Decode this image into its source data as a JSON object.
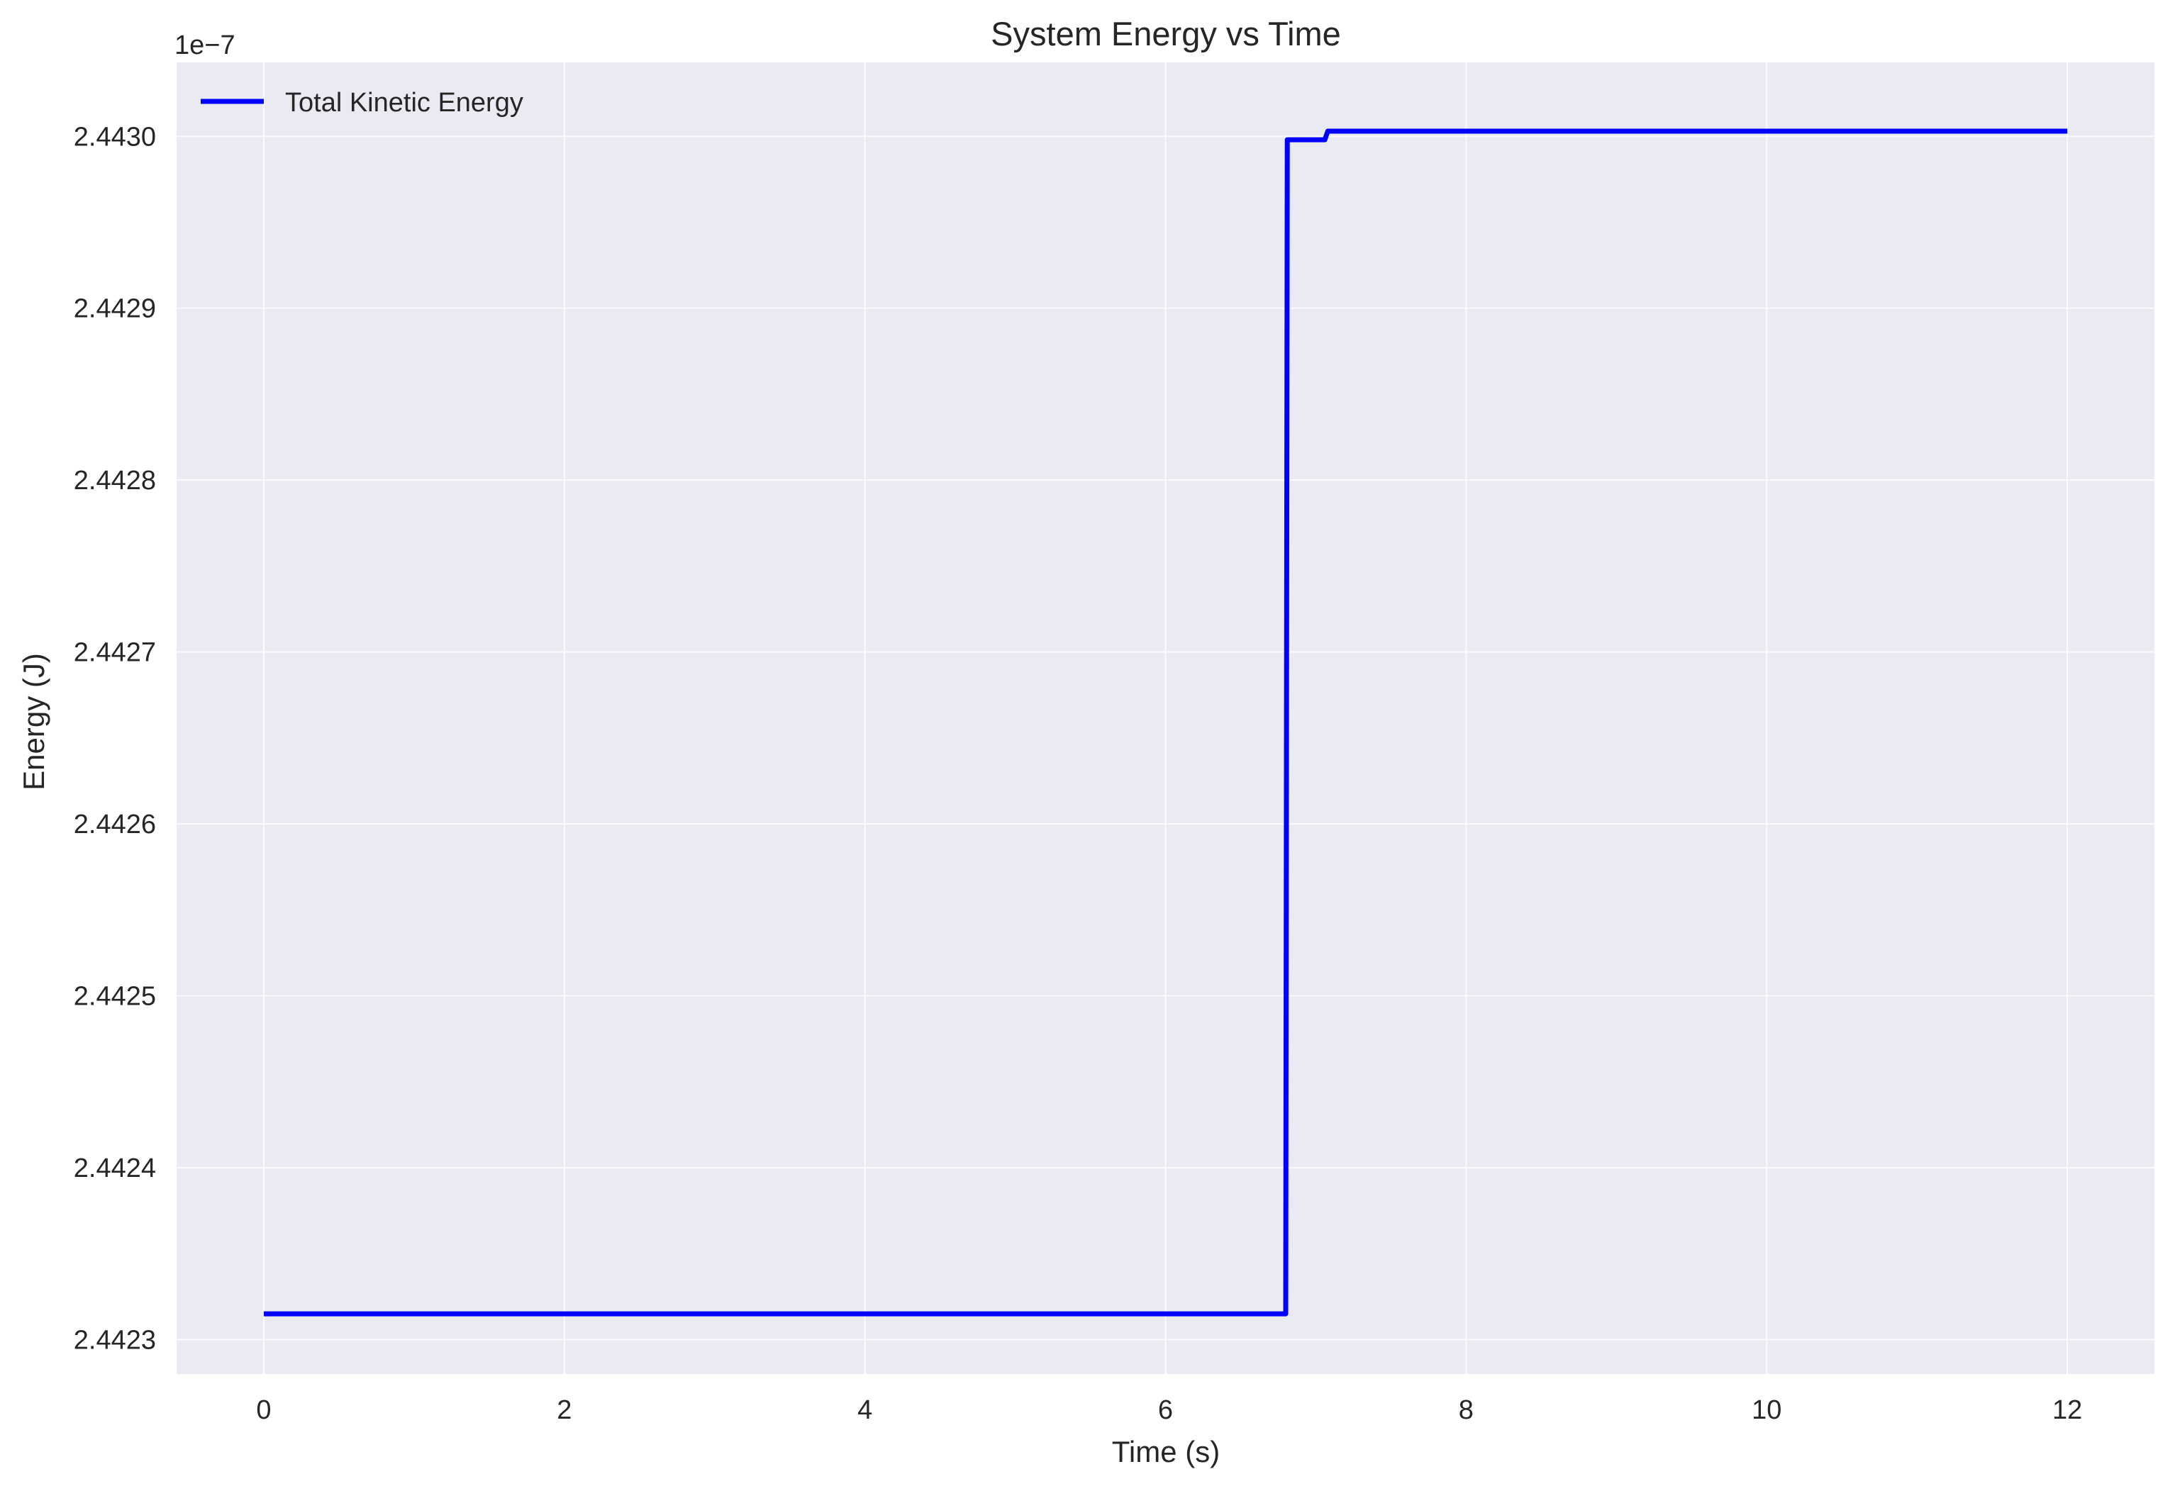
{
  "chart_data": {
    "type": "line",
    "title": "System Energy vs Time",
    "xlabel": "Time (s)",
    "ylabel": "Energy (J)",
    "y_offset_text": "1e−7",
    "xlim": [
      -0.58,
      12.58
    ],
    "ylim": [
      2.44228,
      2.443043
    ],
    "x_ticks": [
      0,
      2,
      4,
      6,
      8,
      10,
      12
    ],
    "x_tick_labels": [
      "0",
      "2",
      "4",
      "6",
      "8",
      "10",
      "12"
    ],
    "y_ticks": [
      2.4423,
      2.4424,
      2.4425,
      2.4426,
      2.4427,
      2.4428,
      2.4429,
      2.443
    ],
    "y_tick_labels": [
      "2.4423",
      "2.4424",
      "2.4425",
      "2.4426",
      "2.4427",
      "2.4428",
      "2.4429",
      "2.4430"
    ],
    "grid": true,
    "legend": {
      "position": "top-left",
      "entries": [
        "Total Kinetic Energy"
      ]
    },
    "series": [
      {
        "name": "Total Kinetic Energy",
        "color": "#0000ff",
        "x": [
          0,
          6.8,
          6.81,
          7.06,
          7.08,
          12
        ],
        "y": [
          2.442315,
          2.442315,
          2.442998,
          2.442998,
          2.443003,
          2.443003
        ]
      }
    ]
  },
  "colors": {
    "plot_background": "#eaeaf2",
    "grid": "#ffffff",
    "line": "#0000ff",
    "text": "#262626"
  }
}
